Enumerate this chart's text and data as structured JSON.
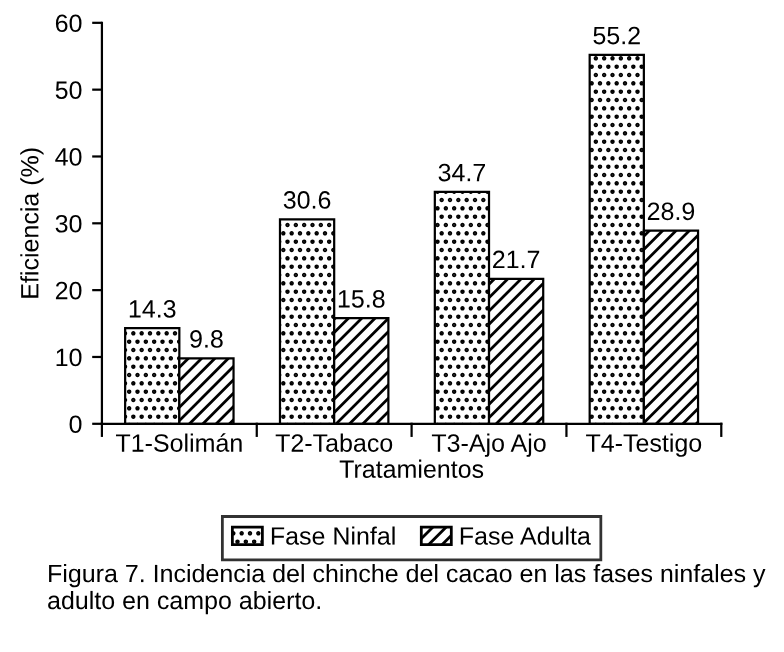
{
  "chart_data": {
    "type": "bar",
    "xlabel": "Tratamientos",
    "ylabel": "Eficiencia (%)",
    "categories": [
      "T1-Solimán",
      "T2-Tabaco",
      "T3-Ajo Ajo",
      "T4-Testigo"
    ],
    "series": [
      {
        "name": "Fase Ninfal",
        "color": "#000000",
        "values": [
          14.3,
          30.6,
          34.7,
          55.2
        ]
      },
      {
        "name": "Fase Adulta",
        "color": "#000000",
        "values": [
          9.8,
          15.8,
          21.7,
          28.9
        ]
      }
    ],
    "ylim": [
      0,
      60
    ],
    "yticks": [
      0,
      10,
      20,
      30,
      40,
      50,
      60
    ],
    "grid": false,
    "legend": "bottom",
    "data_labels": true,
    "annotations": [
      "Figura 7. Incidencia del chinche del cacao en las fases ninfales y adulto en campo abierto."
    ]
  }
}
